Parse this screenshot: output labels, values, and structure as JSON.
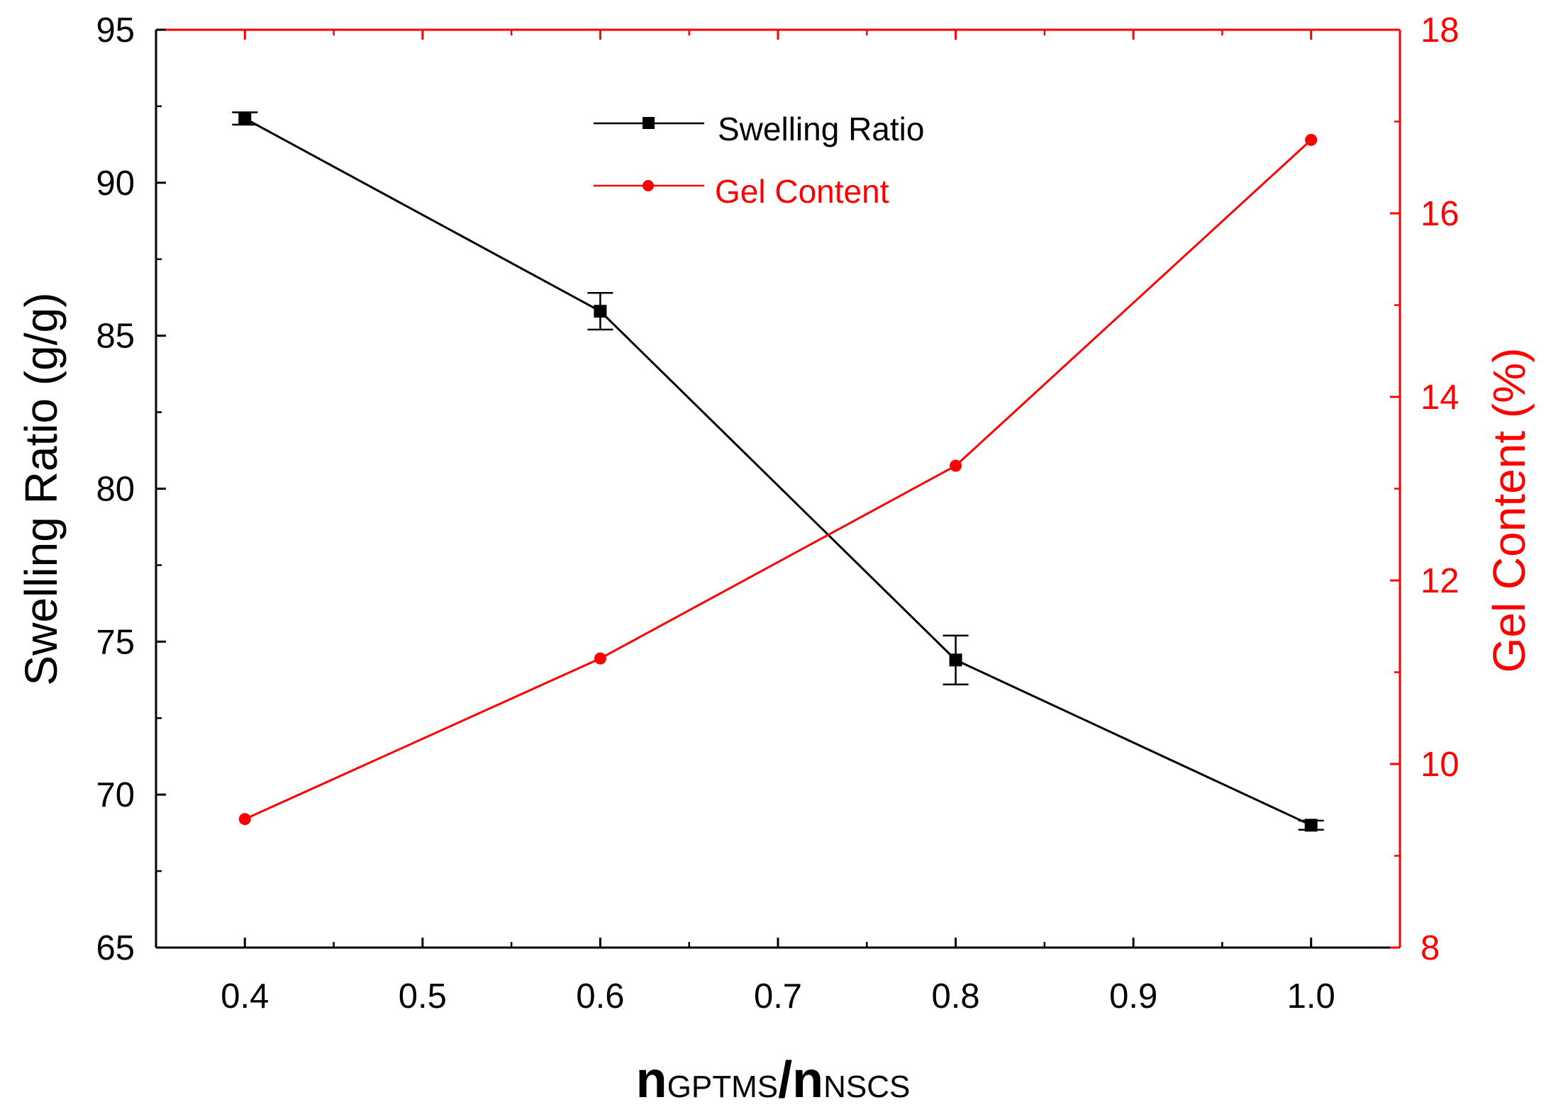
{
  "chart_data": {
    "type": "line",
    "title": "",
    "xlabel": {
      "main": "n",
      "sub1": "GPTMS",
      "slash": "/",
      "main2": "n",
      "sub2": "NSCS"
    },
    "ylabel_left": "Swelling Ratio (g/g)",
    "ylabel_right": "Gel Content (%)",
    "xlim": [
      0.35,
      1.05
    ],
    "ylim_left": [
      65,
      95
    ],
    "ylim_right": [
      8,
      18
    ],
    "x_ticks": [
      "0.4",
      "0.5",
      "0.6",
      "0.7",
      "0.8",
      "0.9",
      "1.0"
    ],
    "y_left_ticks": [
      "65",
      "70",
      "75",
      "80",
      "85",
      "90",
      "95"
    ],
    "y_right_ticks": [
      "8",
      "10",
      "12",
      "14",
      "16",
      "18"
    ],
    "series": [
      {
        "name": "Swelling Ratio",
        "axis": "left",
        "color": "#000000",
        "marker": "square",
        "x": [
          0.4,
          0.6,
          0.8,
          1.0
        ],
        "values": [
          92.1,
          85.8,
          74.4,
          69.0
        ],
        "error": [
          0.2,
          0.6,
          0.8,
          0.15
        ]
      },
      {
        "name": "Gel Content",
        "axis": "right",
        "color": "#ff0000",
        "marker": "circle",
        "x": [
          0.4,
          0.6,
          0.8,
          1.0
        ],
        "values": [
          9.4,
          11.15,
          13.25,
          16.8
        ]
      }
    ],
    "legend_position": "top-center"
  }
}
